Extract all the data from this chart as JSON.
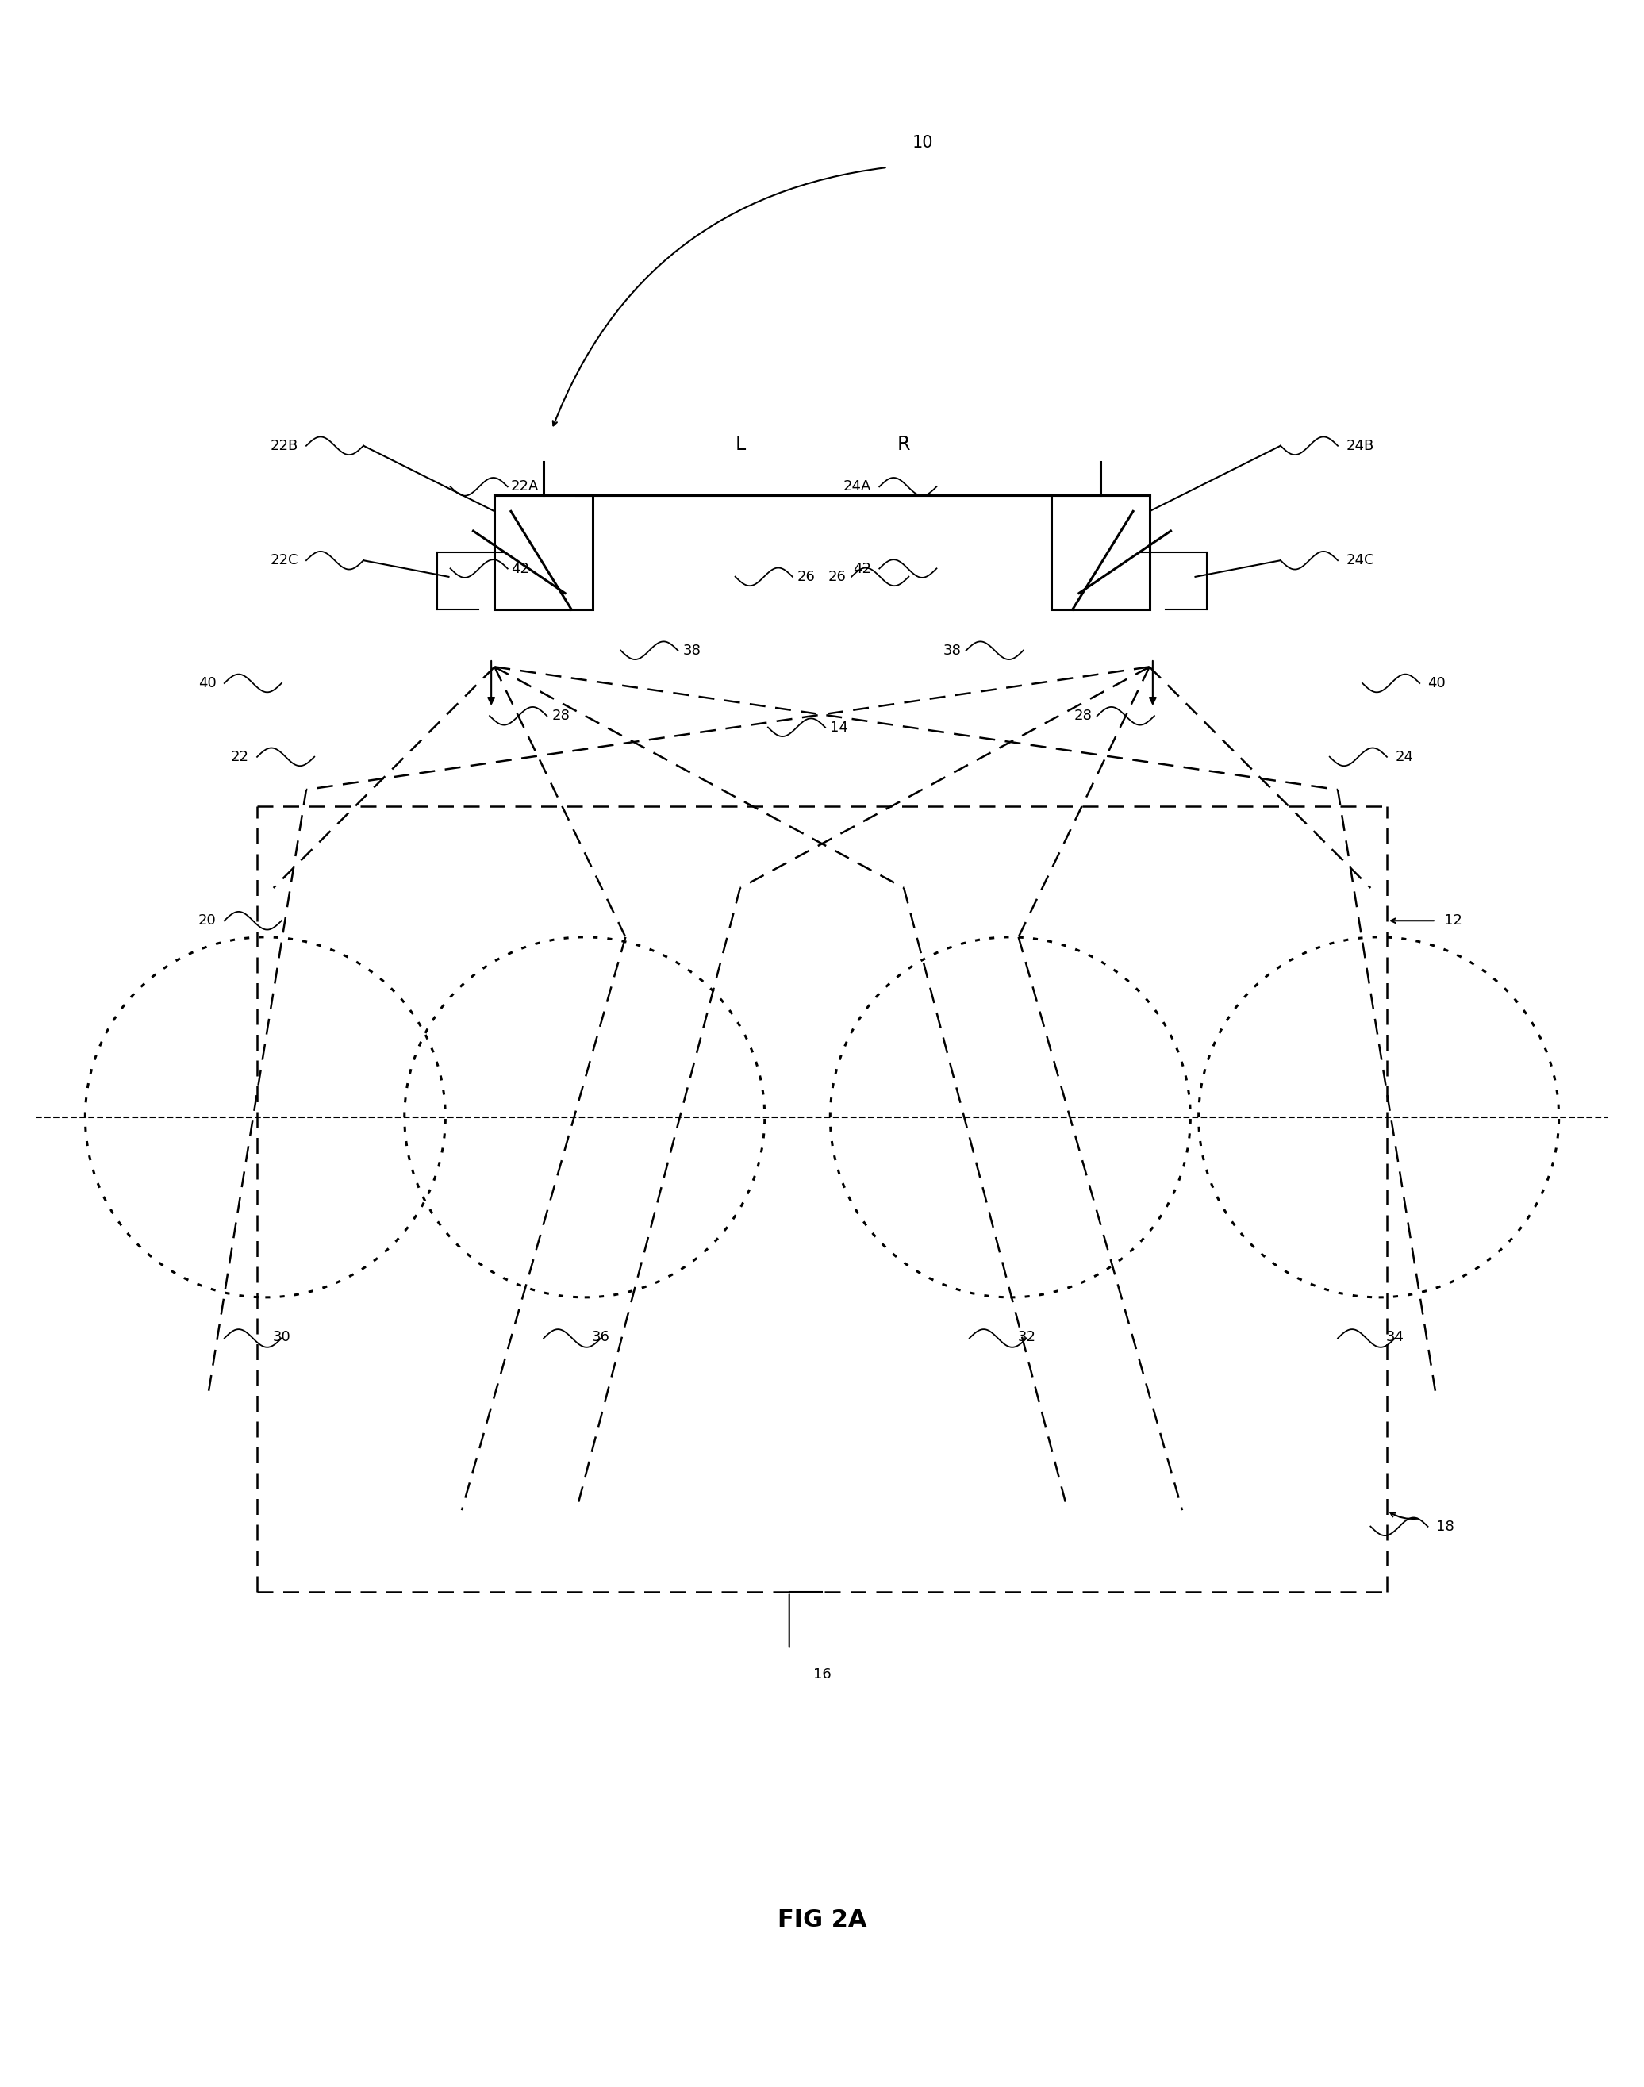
{
  "bg_color": "#ffffff",
  "fig_width": 20.72,
  "fig_height": 26.3,
  "title": "FIG 2A",
  "labels": {
    "10": "10",
    "12": "12",
    "14": "14",
    "16": "16",
    "18": "18",
    "20": "20",
    "22": "22",
    "22A": "22A",
    "22B": "22B",
    "22C": "22C",
    "24": "24",
    "24A": "24A",
    "24B": "24B",
    "24C": "24C",
    "26": "26",
    "28": "28",
    "30": "30",
    "32": "32",
    "34": "34",
    "36": "36",
    "38": "38",
    "40": "40",
    "42": "42",
    "L": "L",
    "R": "R"
  }
}
